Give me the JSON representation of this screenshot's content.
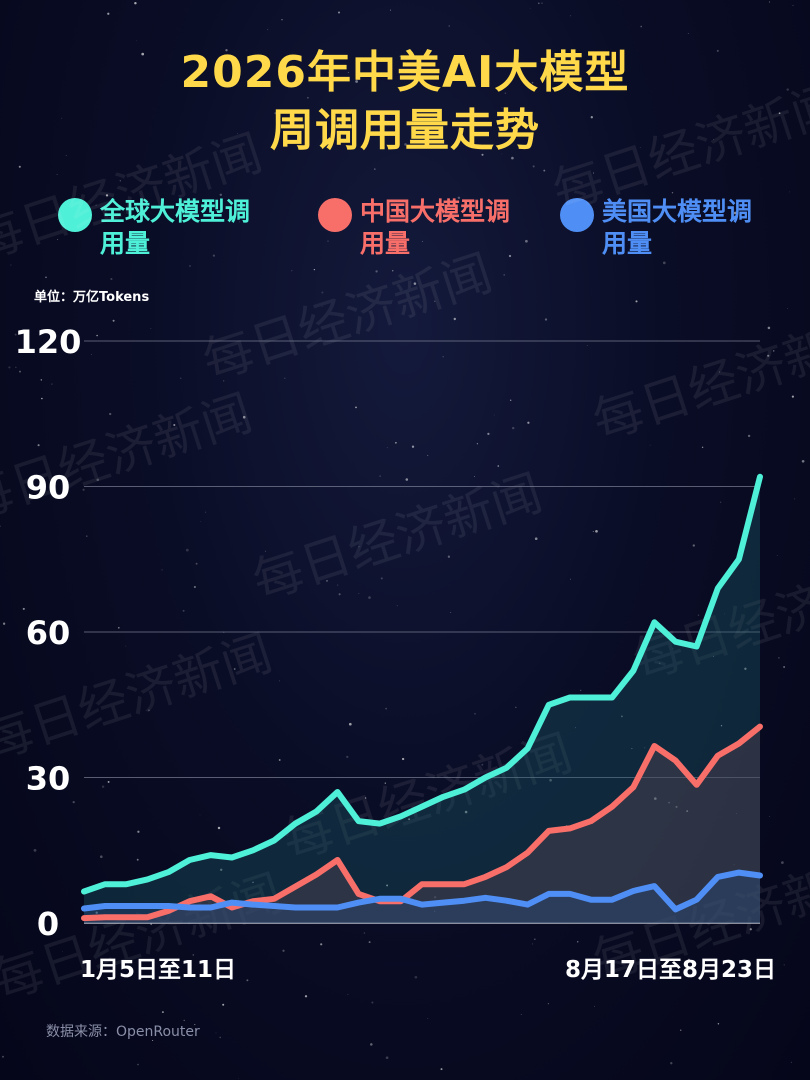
{
  "title": {
    "line1": "2026年中美AI大模型",
    "line2": "周调用量走势"
  },
  "legend": [
    {
      "label": "全球大模型调用量",
      "color": "#4ef0d8"
    },
    {
      "label": "中国大模型调用量",
      "color": "#f86f6a"
    },
    {
      "label": "美国大模型调用量",
      "color": "#4f8ff5"
    }
  ],
  "unit_label": "单位：万亿Tokens",
  "source": "数据来源：OpenRouter",
  "watermark": "每日经济新闻",
  "chart_data": {
    "type": "area",
    "x_labels": [
      "1月5日至11日",
      "8月17日至8月23日"
    ],
    "y_ticks": [
      "0",
      "30",
      "60",
      "90",
      "120"
    ],
    "ylim": [
      0,
      120
    ],
    "grid": true,
    "series": [
      {
        "name": "全球大模型调用量",
        "color": "#4ef0d8",
        "values": [
          6.5,
          8,
          8,
          9,
          10.5,
          13,
          14,
          13.5,
          15,
          17,
          20.5,
          23,
          27,
          21,
          20.5,
          22,
          24,
          26,
          27.5,
          30,
          32,
          36,
          45,
          46.5,
          46.5,
          46.5,
          52,
          62,
          58,
          57,
          69,
          75,
          92
        ]
      },
      {
        "name": "中国大模型调用量",
        "color": "#f86f6a",
        "values": [
          1,
          1.2,
          1.2,
          1.2,
          2.5,
          4.5,
          5.5,
          3.2,
          4.5,
          5,
          7.5,
          10,
          13,
          6,
          4.5,
          4.5,
          8,
          8,
          8,
          9.5,
          11.5,
          14.5,
          19,
          19.5,
          21,
          24,
          28,
          36.5,
          33.5,
          28.5,
          34.5,
          37,
          40.5
        ]
      },
      {
        "name": "美国大模型调用量",
        "color": "#4f8ff5",
        "values": [
          3,
          3.5,
          3.5,
          3.5,
          3.5,
          3.2,
          3.2,
          4.2,
          3.8,
          3.5,
          3.2,
          3.2,
          3.2,
          4.2,
          5,
          5,
          3.8,
          4.2,
          4.6,
          5.2,
          4.6,
          3.8,
          6,
          6,
          4.8,
          4.8,
          6.6,
          7.6,
          2.8,
          4.8,
          9.5,
          10.4,
          9.8
        ]
      }
    ]
  }
}
